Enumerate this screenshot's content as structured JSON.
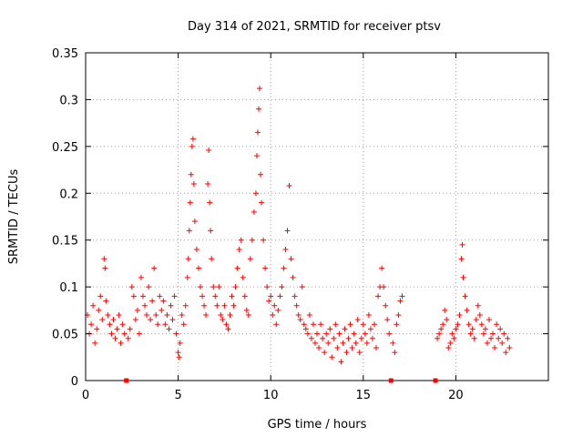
{
  "chart_data": {
    "type": "scatter",
    "title": "Day 314 of 2021, SRMTID for receiver ptsv",
    "xlabel": "GPS time / hours",
    "ylabel": "SRMTID / TECUs",
    "xlim": [
      0,
      25
    ],
    "ylim": [
      0,
      0.35
    ],
    "x_ticks": [
      0,
      5,
      10,
      15,
      20
    ],
    "x_tick_labels": [
      "0",
      "5",
      "10",
      "15",
      "20"
    ],
    "y_ticks": [
      0,
      0.05,
      0.1,
      0.15,
      0.2,
      0.25,
      0.3,
      0.35
    ],
    "y_tick_labels": [
      "0",
      "0.05",
      "0.1",
      "0.15",
      "0.2",
      "0.25",
      "0.3",
      "0.35"
    ],
    "grid": true,
    "marker": "plus",
    "series_color": "#ff0000",
    "gap_markers_x": [
      2.2,
      16.5,
      18.9
    ],
    "series": [
      {
        "name": "SRMTID",
        "points": [
          [
            0.1,
            0.07
          ],
          [
            0.2,
            0.05
          ],
          [
            0.3,
            0.06
          ],
          [
            0.4,
            0.08
          ],
          [
            0.5,
            0.04
          ],
          [
            0.6,
            0.055
          ],
          [
            0.7,
            0.075
          ],
          [
            0.8,
            0.09
          ],
          [
            0.9,
            0.065
          ],
          [
            1.0,
            0.13
          ],
          [
            1.05,
            0.12
          ],
          [
            1.1,
            0.085
          ],
          [
            1.2,
            0.07
          ],
          [
            1.3,
            0.06
          ],
          [
            1.4,
            0.05
          ],
          [
            1.5,
            0.065
          ],
          [
            1.6,
            0.045
          ],
          [
            1.7,
            0.055
          ],
          [
            1.8,
            0.07
          ],
          [
            1.9,
            0.04
          ],
          [
            2.0,
            0.06
          ],
          [
            2.1,
            0.05
          ],
          [
            2.3,
            0.045
          ],
          [
            2.4,
            0.055
          ],
          [
            2.5,
            0.1
          ],
          [
            2.6,
            0.09
          ],
          [
            2.7,
            0.065
          ],
          [
            2.8,
            0.075
          ],
          [
            2.9,
            0.05
          ],
          [
            3.0,
            0.11
          ],
          [
            3.1,
            0.09
          ],
          [
            3.2,
            0.08
          ],
          [
            3.3,
            0.07
          ],
          [
            3.4,
            0.1
          ],
          [
            3.5,
            0.065
          ],
          [
            3.6,
            0.085
          ],
          [
            3.7,
            0.12
          ],
          [
            3.8,
            0.07
          ],
          [
            3.9,
            0.06
          ],
          [
            4.0,
            0.09
          ],
          [
            4.1,
            0.075
          ],
          [
            4.2,
            0.085
          ],
          [
            4.3,
            0.06
          ],
          [
            4.4,
            0.07
          ],
          [
            4.5,
            0.055
          ],
          [
            4.6,
            0.08
          ],
          [
            4.7,
            0.065
          ],
          [
            4.8,
            0.09
          ],
          [
            4.9,
            0.05
          ],
          [
            5.0,
            0.03
          ],
          [
            5.05,
            0.025
          ],
          [
            5.1,
            0.04
          ],
          [
            5.2,
            0.07
          ],
          [
            5.3,
            0.06
          ],
          [
            5.4,
            0.08
          ],
          [
            5.5,
            0.11
          ],
          [
            5.55,
            0.13
          ],
          [
            5.6,
            0.16
          ],
          [
            5.65,
            0.19
          ],
          [
            5.7,
            0.22
          ],
          [
            5.75,
            0.25
          ],
          [
            5.8,
            0.258
          ],
          [
            5.85,
            0.21
          ],
          [
            5.9,
            0.17
          ],
          [
            6.0,
            0.14
          ],
          [
            6.1,
            0.12
          ],
          [
            6.2,
            0.1
          ],
          [
            6.3,
            0.09
          ],
          [
            6.4,
            0.08
          ],
          [
            6.5,
            0.07
          ],
          [
            6.6,
            0.21
          ],
          [
            6.65,
            0.246
          ],
          [
            6.7,
            0.19
          ],
          [
            6.75,
            0.16
          ],
          [
            6.8,
            0.13
          ],
          [
            6.9,
            0.1
          ],
          [
            7.0,
            0.09
          ],
          [
            7.1,
            0.08
          ],
          [
            7.2,
            0.1
          ],
          [
            7.3,
            0.07
          ],
          [
            7.4,
            0.065
          ],
          [
            7.5,
            0.08
          ],
          [
            7.6,
            0.06
          ],
          [
            7.7,
            0.055
          ],
          [
            7.8,
            0.07
          ],
          [
            7.9,
            0.09
          ],
          [
            8.0,
            0.08
          ],
          [
            8.1,
            0.1
          ],
          [
            8.2,
            0.12
          ],
          [
            8.3,
            0.14
          ],
          [
            8.4,
            0.15
          ],
          [
            8.5,
            0.11
          ],
          [
            8.6,
            0.09
          ],
          [
            8.7,
            0.075
          ],
          [
            8.8,
            0.07
          ],
          [
            8.9,
            0.13
          ],
          [
            9.0,
            0.15
          ],
          [
            9.1,
            0.18
          ],
          [
            9.2,
            0.2
          ],
          [
            9.25,
            0.24
          ],
          [
            9.3,
            0.265
          ],
          [
            9.35,
            0.29
          ],
          [
            9.4,
            0.312
          ],
          [
            9.45,
            0.22
          ],
          [
            9.5,
            0.19
          ],
          [
            9.6,
            0.15
          ],
          [
            9.7,
            0.12
          ],
          [
            9.8,
            0.1
          ],
          [
            9.9,
            0.085
          ],
          [
            10.0,
            0.09
          ],
          [
            10.1,
            0.07
          ],
          [
            10.2,
            0.08
          ],
          [
            10.3,
            0.06
          ],
          [
            10.4,
            0.075
          ],
          [
            10.5,
            0.09
          ],
          [
            10.6,
            0.1
          ],
          [
            10.7,
            0.12
          ],
          [
            10.8,
            0.14
          ],
          [
            10.9,
            0.16
          ],
          [
            11.0,
            0.208
          ],
          [
            11.1,
            0.13
          ],
          [
            11.2,
            0.11
          ],
          [
            11.3,
            0.09
          ],
          [
            11.4,
            0.08
          ],
          [
            11.5,
            0.07
          ],
          [
            11.6,
            0.065
          ],
          [
            11.7,
            0.1
          ],
          [
            11.8,
            0.06
          ],
          [
            11.9,
            0.055
          ],
          [
            12.0,
            0.05
          ],
          [
            12.1,
            0.07
          ],
          [
            12.2,
            0.045
          ],
          [
            12.3,
            0.06
          ],
          [
            12.4,
            0.04
          ],
          [
            12.5,
            0.05
          ],
          [
            12.6,
            0.035
          ],
          [
            12.7,
            0.06
          ],
          [
            12.8,
            0.045
          ],
          [
            12.9,
            0.03
          ],
          [
            13.0,
            0.05
          ],
          [
            13.1,
            0.04
          ],
          [
            13.2,
            0.055
          ],
          [
            13.3,
            0.025
          ],
          [
            13.4,
            0.045
          ],
          [
            13.5,
            0.06
          ],
          [
            13.6,
            0.035
          ],
          [
            13.7,
            0.05
          ],
          [
            13.8,
            0.02
          ],
          [
            13.9,
            0.04
          ],
          [
            14.0,
            0.055
          ],
          [
            14.1,
            0.03
          ],
          [
            14.2,
            0.045
          ],
          [
            14.3,
            0.06
          ],
          [
            14.4,
            0.035
          ],
          [
            14.5,
            0.05
          ],
          [
            14.6,
            0.04
          ],
          [
            14.7,
            0.065
          ],
          [
            14.8,
            0.03
          ],
          [
            14.9,
            0.045
          ],
          [
            15.0,
            0.06
          ],
          [
            15.1,
            0.05
          ],
          [
            15.2,
            0.04
          ],
          [
            15.3,
            0.07
          ],
          [
            15.4,
            0.055
          ],
          [
            15.5,
            0.045
          ],
          [
            15.6,
            0.06
          ],
          [
            15.7,
            0.035
          ],
          [
            15.8,
            0.09
          ],
          [
            15.9,
            0.1
          ],
          [
            16.0,
            0.12
          ],
          [
            16.1,
            0.1
          ],
          [
            16.2,
            0.08
          ],
          [
            16.3,
            0.065
          ],
          [
            16.4,
            0.05
          ],
          [
            16.6,
            0.04
          ],
          [
            16.7,
            0.03
          ],
          [
            16.8,
            0.06
          ],
          [
            16.9,
            0.07
          ],
          [
            17.0,
            0.085
          ],
          [
            17.1,
            0.09
          ],
          [
            19.0,
            0.045
          ],
          [
            19.1,
            0.05
          ],
          [
            19.2,
            0.055
          ],
          [
            19.3,
            0.06
          ],
          [
            19.4,
            0.075
          ],
          [
            19.5,
            0.065
          ],
          [
            19.6,
            0.035
          ],
          [
            19.7,
            0.04
          ],
          [
            19.8,
            0.05
          ],
          [
            19.9,
            0.045
          ],
          [
            20.0,
            0.055
          ],
          [
            20.1,
            0.06
          ],
          [
            20.2,
            0.07
          ],
          [
            20.3,
            0.13
          ],
          [
            20.35,
            0.145
          ],
          [
            20.4,
            0.11
          ],
          [
            20.5,
            0.09
          ],
          [
            20.6,
            0.075
          ],
          [
            20.7,
            0.06
          ],
          [
            20.8,
            0.05
          ],
          [
            20.9,
            0.055
          ],
          [
            21.0,
            0.045
          ],
          [
            21.1,
            0.065
          ],
          [
            21.2,
            0.08
          ],
          [
            21.3,
            0.07
          ],
          [
            21.4,
            0.06
          ],
          [
            21.5,
            0.05
          ],
          [
            21.6,
            0.055
          ],
          [
            21.7,
            0.04
          ],
          [
            21.8,
            0.065
          ],
          [
            21.9,
            0.045
          ],
          [
            22.0,
            0.05
          ],
          [
            22.1,
            0.035
          ],
          [
            22.2,
            0.06
          ],
          [
            22.3,
            0.045
          ],
          [
            22.4,
            0.055
          ],
          [
            22.5,
            0.04
          ],
          [
            22.6,
            0.05
          ],
          [
            22.7,
            0.03
          ],
          [
            22.8,
            0.045
          ],
          [
            22.9,
            0.035
          ]
        ]
      }
    ]
  }
}
